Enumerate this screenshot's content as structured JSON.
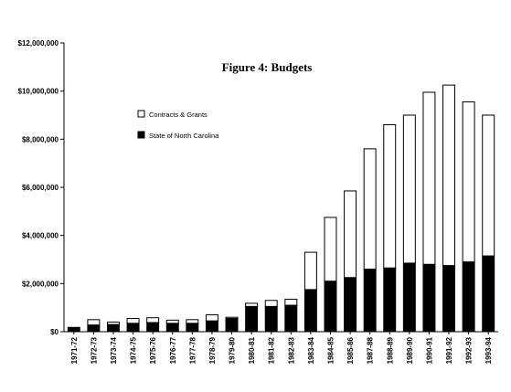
{
  "chart_data": {
    "type": "bar",
    "stacked": true,
    "title": "Figure 4:  Budgets",
    "categories": [
      "1971-72",
      "1972-73",
      "1973-74",
      "1974-75",
      "1975-76",
      "1976-77",
      "1977-78",
      "1978-79",
      "1979-80",
      "1980-81",
      "1981-82",
      "1982-83",
      "1983-84",
      "1984-85",
      "1985-86",
      "1987-88",
      "1988-89",
      "1989-90",
      "1990-91",
      "1991-92",
      "1992-93",
      "1993-94"
    ],
    "series": [
      {
        "name": "State of North Carolina",
        "color": "#000000",
        "values": [
          180000,
          280000,
          300000,
          350000,
          380000,
          350000,
          350000,
          450000,
          550000,
          1050000,
          1050000,
          1100000,
          1750000,
          2100000,
          2250000,
          2600000,
          2650000,
          2850000,
          2800000,
          2750000,
          2900000,
          3150000
        ]
      },
      {
        "name": "Contracts & Grants",
        "color": "#ffffff",
        "values": [
          0,
          220000,
          100000,
          200000,
          200000,
          130000,
          150000,
          250000,
          50000,
          130000,
          250000,
          250000,
          1550000,
          2650000,
          3600000,
          5000000,
          5950000,
          6150000,
          7150000,
          7500000,
          6650000,
          5850000
        ]
      }
    ],
    "yticks": [
      "$0",
      "$2,000,000",
      "$4,000,000",
      "$6,000,000",
      "$8,000,000",
      "$10,000,000",
      "$12,000,000"
    ],
    "ylim": [
      0,
      12000000
    ],
    "xlabel": "",
    "ylabel": "",
    "legend_position": "upper-left",
    "grid": false
  }
}
